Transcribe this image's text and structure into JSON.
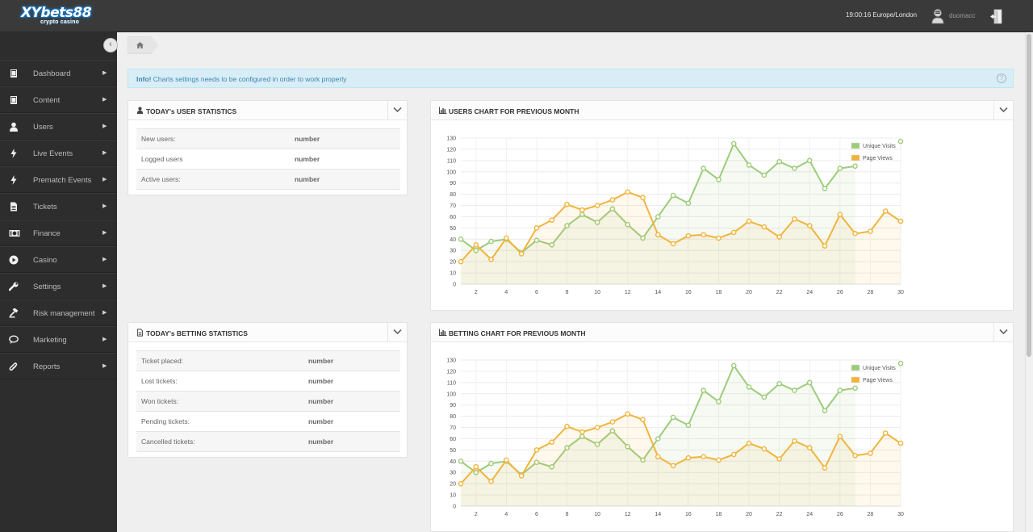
{
  "header": {
    "logo_main": "XYbets88",
    "logo_sub": "crypto casino",
    "clock": "19:00:16 Europe/London",
    "username": "duomacc"
  },
  "sidebar": {
    "items": [
      {
        "label": "Dashboard",
        "icon": "book-icon"
      },
      {
        "label": "Content",
        "icon": "book-icon"
      },
      {
        "label": "Users",
        "icon": "user-icon"
      },
      {
        "label": "Live Events",
        "icon": "bolt-icon"
      },
      {
        "label": "Prematch Events",
        "icon": "bolt-icon"
      },
      {
        "label": "Tickets",
        "icon": "document-icon"
      },
      {
        "label": "Finance",
        "icon": "money-icon"
      },
      {
        "label": "Casino",
        "icon": "play-circle-icon"
      },
      {
        "label": "Settings",
        "icon": "wrench-icon"
      },
      {
        "label": "Risk management",
        "icon": "gavel-icon"
      },
      {
        "label": "Marketing",
        "icon": "chat-icon"
      },
      {
        "label": "Reports",
        "icon": "paperclip-icon"
      }
    ]
  },
  "alert": {
    "strong": "Info!",
    "text": " Charts settings needs to be configured in order to work properly"
  },
  "user_stats": {
    "title": "TODAY's USER STATISTICS",
    "rows": [
      {
        "label": "New users:",
        "value": "number"
      },
      {
        "label": "Logged users",
        "value": "number"
      },
      {
        "label": "Active users:",
        "value": "number"
      }
    ]
  },
  "betting_stats": {
    "title": "TODAY's BETTING STATISTICS",
    "rows": [
      {
        "label": "Ticket placed:",
        "value": "number"
      },
      {
        "label": "Lost tickets:",
        "value": "number"
      },
      {
        "label": "Won tickets:",
        "value": "number"
      },
      {
        "label": "Pending tickets:",
        "value": "number"
      },
      {
        "label": "Cancelled tickets:",
        "value": "number"
      }
    ]
  },
  "users_chart": {
    "title": "USERS CHART FOR PREVIOUS MONTH"
  },
  "betting_chart": {
    "title": "BETTING CHART FOR PREVIOUS MONTH"
  },
  "chart_data": [
    {
      "type": "line",
      "title": "USERS CHART FOR PREVIOUS MONTH",
      "x": [
        1,
        2,
        3,
        4,
        5,
        6,
        7,
        8,
        9,
        10,
        11,
        12,
        13,
        14,
        15,
        16,
        17,
        18,
        19,
        20,
        21,
        22,
        23,
        24,
        25,
        26,
        27,
        28,
        29,
        30
      ],
      "x_tick_labels": [
        "2",
        "4",
        "6",
        "8",
        "10",
        "12",
        "14",
        "16",
        "18",
        "20",
        "22",
        "24",
        "26",
        "28",
        "30"
      ],
      "ylim": [
        0,
        130
      ],
      "y_tick_labels": [
        "0",
        "10",
        "20",
        "30",
        "40",
        "50",
        "60",
        "70",
        "80",
        "90",
        "100",
        "110",
        "120",
        "130"
      ],
      "legend_position": "top-right",
      "grid": true,
      "series": [
        {
          "name": "Unique Visits",
          "color": "#9ccc7a",
          "values": [
            40,
            30,
            38,
            40,
            28,
            39,
            35,
            52,
            62,
            55,
            67,
            53,
            41,
            60,
            79,
            72,
            103,
            93,
            125,
            106,
            97,
            109,
            103,
            110,
            85,
            103,
            105,
            null,
            null,
            127
          ]
        },
        {
          "name": "Page Views",
          "color": "#f0b43c",
          "values": [
            20,
            35,
            22,
            41,
            27,
            50,
            57,
            71,
            66,
            70,
            75,
            82,
            77,
            44,
            36,
            43,
            44,
            41,
            46,
            56,
            51,
            42,
            58,
            52,
            34,
            62,
            45,
            47,
            65,
            56
          ]
        }
      ]
    },
    {
      "type": "line",
      "title": "BETTING CHART FOR PREVIOUS MONTH",
      "x": [
        1,
        2,
        3,
        4,
        5,
        6,
        7,
        8,
        9,
        10,
        11,
        12,
        13,
        14,
        15,
        16,
        17,
        18,
        19,
        20,
        21,
        22,
        23,
        24,
        25,
        26,
        27,
        28,
        29,
        30
      ],
      "x_tick_labels": [
        "2",
        "4",
        "6",
        "8",
        "10",
        "12",
        "14",
        "16",
        "18",
        "20",
        "22",
        "24",
        "26",
        "28",
        "30"
      ],
      "ylim": [
        0,
        130
      ],
      "y_tick_labels": [
        "0",
        "10",
        "20",
        "30",
        "40",
        "50",
        "60",
        "70",
        "80",
        "90",
        "100",
        "110",
        "120",
        "130"
      ],
      "legend_position": "top-right",
      "grid": true,
      "series": [
        {
          "name": "Unique Visits",
          "color": "#9ccc7a",
          "values": [
            40,
            30,
            38,
            40,
            28,
            39,
            35,
            52,
            62,
            55,
            67,
            53,
            41,
            60,
            79,
            72,
            103,
            93,
            125,
            106,
            97,
            109,
            103,
            110,
            85,
            103,
            105,
            null,
            null,
            127
          ]
        },
        {
          "name": "Page Views",
          "color": "#f0b43c",
          "values": [
            20,
            35,
            22,
            41,
            27,
            50,
            57,
            71,
            66,
            70,
            75,
            82,
            77,
            44,
            36,
            43,
            44,
            41,
            46,
            56,
            51,
            42,
            58,
            52,
            34,
            62,
            45,
            47,
            65,
            56
          ]
        }
      ]
    }
  ]
}
